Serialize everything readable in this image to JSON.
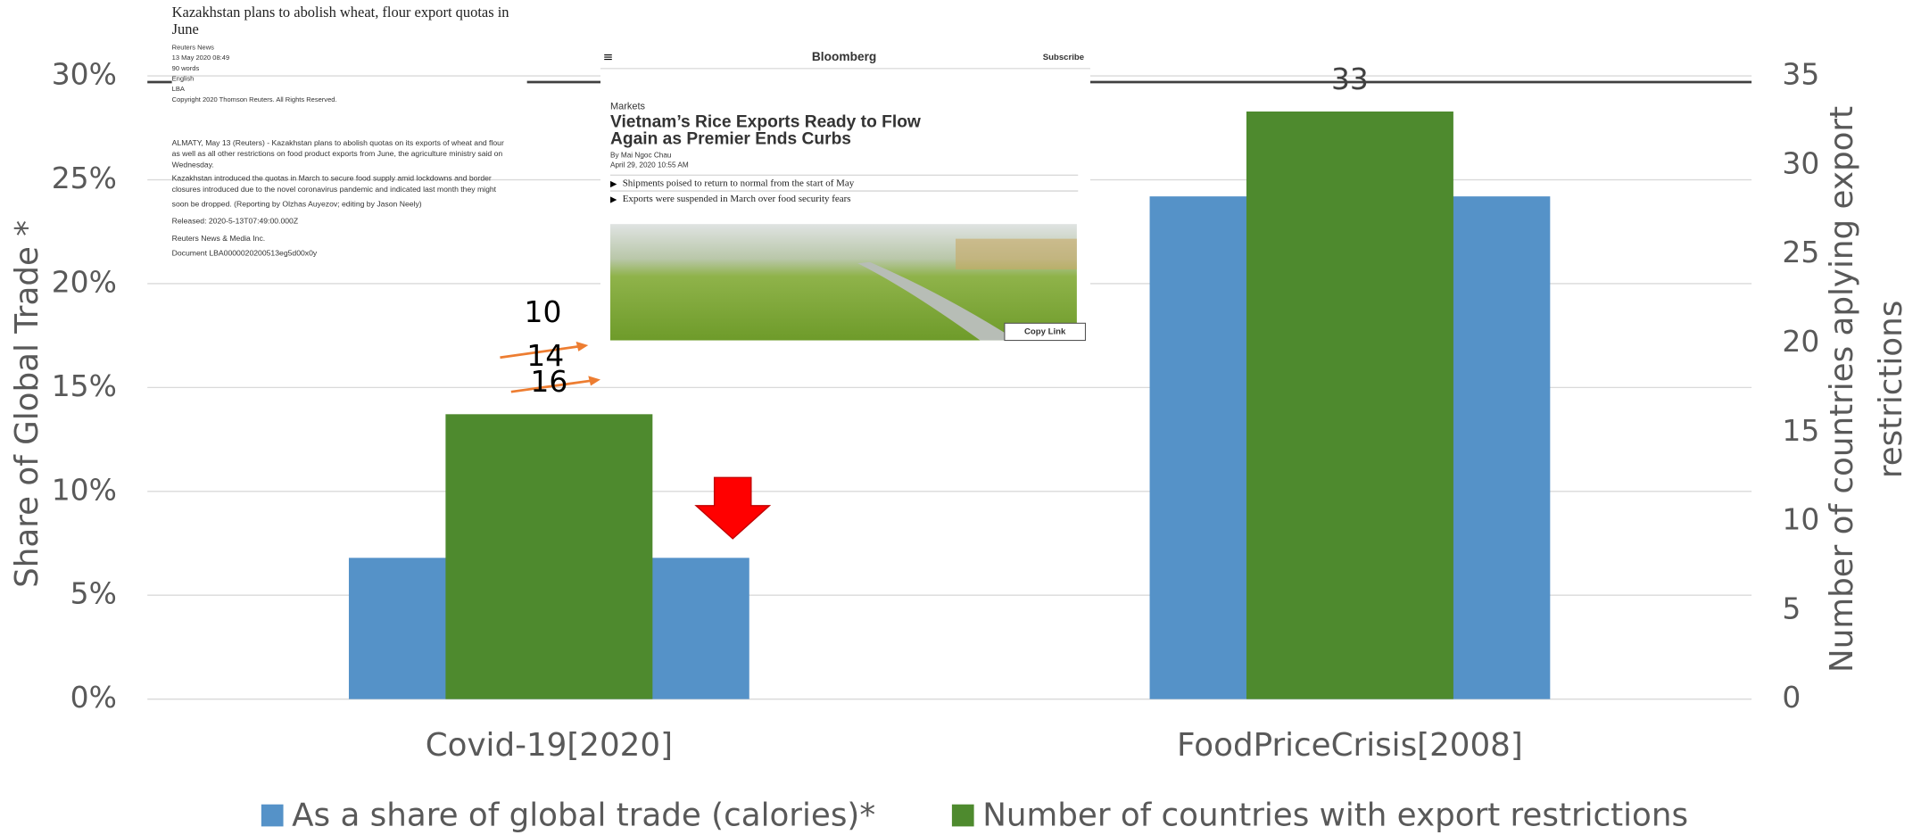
{
  "chart_data": {
    "type": "bar",
    "categories": [
      "Covid-19[2020]",
      "FoodPriceCrisis[2008]"
    ],
    "series": [
      {
        "name": "As a share of global trade (calories)*",
        "color": "#5592c8",
        "values": [
          6.8,
          24.2
        ]
      },
      {
        "name": "Number of countries with export restrictions",
        "color": "#4e8a2e",
        "values": [
          16,
          33
        ],
        "axis": "y2"
      }
    ],
    "y_label": "Share of Global Trade *",
    "y2_label": [
      "Number of countries aplying export",
      "restrictions"
    ],
    "ylim": [
      0,
      30
    ],
    "yticks": [
      {
        "value": 0,
        "label": "0%"
      },
      {
        "value": 5,
        "label": "5%"
      },
      {
        "value": 10,
        "label": "10%"
      },
      {
        "value": 15,
        "label": "15%"
      },
      {
        "value": 20,
        "label": "20%"
      },
      {
        "value": 25,
        "label": "25%"
      },
      {
        "value": 30,
        "label": "30%"
      }
    ],
    "y2lim": [
      0,
      35
    ],
    "y2ticks": [
      0,
      5,
      10,
      15,
      20,
      25,
      30,
      35
    ],
    "grid": true,
    "annotations": [
      "10",
      "14",
      "16"
    ]
  },
  "reuters": {
    "title": [
      "Kazakhstan plans to abolish wheat, flour export quotas in",
      "June"
    ],
    "meta": [
      "Reuters News",
      "13 May 2020 08:49",
      "90 words",
      "English",
      "LBA",
      "Copyright 2020 Thomson Reuters. All Rights Reserved."
    ],
    "body": [
      "ALMATY, May 13 (Reuters) - Kazakhstan plans to abolish quotas on its exports of wheat and flour",
      "as well as all other restrictions on food product exports from June, the agriculture ministry said on",
      "Wednesday.",
      "Kazakhstan introduced the quotas in March to secure food supply amid lockdowns and border",
      "closures introduced due to the novel coronavirus pandemic and indicated last month they might",
      "soon be dropped. (Reporting by Olzhas Auyezov; editing by Jason Neely)",
      "Released: 2020-5-13T07:49:00.000Z",
      "Reuters News & Media Inc.",
      "Document LBA0000020200513eg5d00x0y"
    ]
  },
  "bloomberg": {
    "brand": "Bloomberg",
    "subscribe": "Subscribe",
    "section": "Markets",
    "headline": [
      "Vietnam’s Rice Exports Ready to Flow",
      "Again as Premier Ends Curbs"
    ],
    "byline": "By Mai Ngoc Chau",
    "date": "April 29, 2020 10:55 AM",
    "bullets": [
      "Shipments poised to return to normal from the start of May",
      "Exports were suspended in March over food security fears"
    ],
    "copy_link": "Copy Link"
  }
}
